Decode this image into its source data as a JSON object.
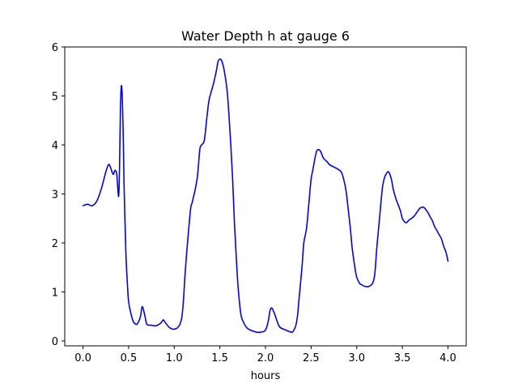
{
  "chart_data": {
    "type": "line",
    "title": "Water Depth h at gauge 6",
    "xlabel": "hours",
    "ylabel": "",
    "xlim": [
      -0.2,
      4.2
    ],
    "ylim": [
      -0.1,
      6.0
    ],
    "xticks": [
      0.0,
      0.5,
      1.0,
      1.5,
      2.0,
      2.5,
      3.0,
      3.5,
      4.0
    ],
    "xtick_labels": [
      "0.0",
      "0.5",
      "1.0",
      "1.5",
      "2.0",
      "2.5",
      "3.0",
      "3.5",
      "4.0"
    ],
    "yticks": [
      0,
      1,
      2,
      3,
      4,
      5,
      6
    ],
    "ytick_labels": [
      "0",
      "1",
      "2",
      "3",
      "4",
      "5",
      "6"
    ],
    "grid": false,
    "legend": "none",
    "series": [
      {
        "color": "#0000ff",
        "x": [
          0.0,
          0.05,
          0.1,
          0.15,
          0.2,
          0.25,
          0.28,
          0.3,
          0.33,
          0.35,
          0.37,
          0.39,
          0.4,
          0.41,
          0.42,
          0.43,
          0.44,
          0.45,
          0.47,
          0.49,
          0.5,
          0.52,
          0.55,
          0.58,
          0.6,
          0.63,
          0.65,
          0.68,
          0.7,
          0.75,
          0.8,
          0.85,
          0.88,
          0.9,
          0.95,
          1.0,
          1.05,
          1.08,
          1.1,
          1.12,
          1.15,
          1.18,
          1.2,
          1.25,
          1.28,
          1.3,
          1.33,
          1.36,
          1.38,
          1.4,
          1.43,
          1.46,
          1.48,
          1.5,
          1.52,
          1.55,
          1.58,
          1.6,
          1.62,
          1.64,
          1.66,
          1.68,
          1.7,
          1.73,
          1.76,
          1.8,
          1.85,
          1.9,
          1.95,
          2.0,
          2.03,
          2.05,
          2.07,
          2.1,
          2.15,
          2.2,
          2.25,
          2.28,
          2.3,
          2.33,
          2.35,
          2.37,
          2.4,
          2.42,
          2.45,
          2.48,
          2.5,
          2.52,
          2.55,
          2.57,
          2.6,
          2.63,
          2.65,
          2.68,
          2.7,
          2.75,
          2.8,
          2.83,
          2.85,
          2.88,
          2.9,
          2.93,
          2.95,
          2.98,
          3.0,
          3.03,
          3.05,
          3.08,
          3.1,
          3.13,
          3.15,
          3.18,
          3.2,
          3.22,
          3.25,
          3.28,
          3.3,
          3.32,
          3.35,
          3.38,
          3.4,
          3.43,
          3.45,
          3.48,
          3.5,
          3.53,
          3.55,
          3.58,
          3.6,
          3.63,
          3.65,
          3.68,
          3.7,
          3.73,
          3.75,
          3.78,
          3.8,
          3.83,
          3.85,
          3.88,
          3.9,
          3.93,
          3.95,
          3.98,
          4.0
        ],
        "y": [
          2.76,
          2.79,
          2.76,
          2.85,
          3.1,
          3.45,
          3.6,
          3.55,
          3.4,
          3.48,
          3.4,
          2.95,
          3.5,
          4.7,
          5.2,
          5.0,
          4.3,
          3.2,
          1.8,
          1.05,
          0.8,
          0.6,
          0.4,
          0.34,
          0.36,
          0.5,
          0.7,
          0.5,
          0.34,
          0.32,
          0.31,
          0.36,
          0.43,
          0.38,
          0.27,
          0.24,
          0.3,
          0.45,
          0.8,
          1.4,
          2.1,
          2.7,
          2.85,
          3.3,
          3.9,
          4.0,
          4.1,
          4.6,
          4.9,
          5.05,
          5.25,
          5.5,
          5.7,
          5.75,
          5.72,
          5.5,
          5.1,
          4.6,
          4.0,
          3.3,
          2.4,
          1.7,
          1.1,
          0.55,
          0.38,
          0.26,
          0.21,
          0.18,
          0.18,
          0.22,
          0.4,
          0.62,
          0.67,
          0.55,
          0.3,
          0.24,
          0.2,
          0.18,
          0.19,
          0.3,
          0.5,
          0.9,
          1.5,
          2.0,
          2.3,
          2.9,
          3.3,
          3.5,
          3.8,
          3.9,
          3.88,
          3.75,
          3.7,
          3.65,
          3.6,
          3.55,
          3.5,
          3.45,
          3.35,
          3.1,
          2.8,
          2.3,
          1.9,
          1.5,
          1.3,
          1.18,
          1.15,
          1.12,
          1.11,
          1.11,
          1.13,
          1.2,
          1.4,
          1.9,
          2.5,
          3.1,
          3.3,
          3.4,
          3.45,
          3.3,
          3.1,
          2.9,
          2.8,
          2.65,
          2.5,
          2.42,
          2.42,
          2.48,
          2.5,
          2.55,
          2.6,
          2.68,
          2.72,
          2.73,
          2.7,
          2.62,
          2.55,
          2.45,
          2.35,
          2.25,
          2.18,
          2.08,
          1.95,
          1.8,
          1.63
        ]
      }
    ]
  }
}
